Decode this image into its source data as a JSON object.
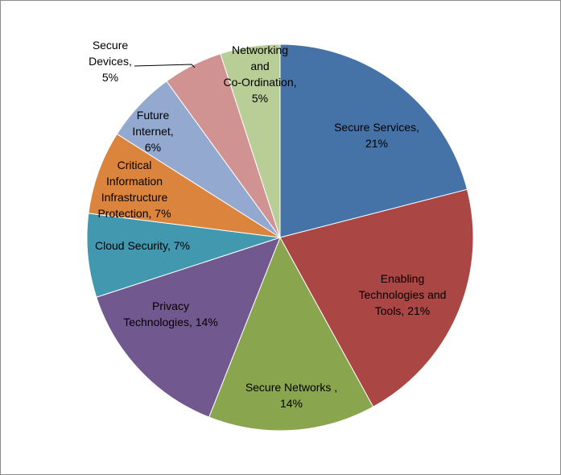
{
  "chart_data": {
    "type": "pie",
    "title": "",
    "start_angle_deg": 0,
    "direction": "clockwise",
    "legend": "none",
    "slices": [
      {
        "label": [
          "Secure Services,",
          "21%"
        ],
        "value": 21,
        "color": "#4572A7"
      },
      {
        "label": [
          "Enabling",
          "Technologies and",
          "Tools, 21%"
        ],
        "value": 21,
        "color": "#AA4643"
      },
      {
        "label": [
          "Secure Networks ,",
          "14%"
        ],
        "value": 14,
        "color": "#89A54E"
      },
      {
        "label": [
          "Privacy",
          "Technologies, 14%"
        ],
        "value": 14,
        "color": "#71588F"
      },
      {
        "label": [
          "Cloud Security, 7%"
        ],
        "value": 7,
        "color": "#4198AF"
      },
      {
        "label": [
          "Critical",
          "Information",
          "Infrastructure",
          "Protection, 7%"
        ],
        "value": 7,
        "color": "#DB843D"
      },
      {
        "label": [
          "Future",
          "Internet,",
          "6%"
        ],
        "value": 6,
        "color": "#93A9CF"
      },
      {
        "label": [
          "Secure",
          "Devices,",
          "5%"
        ],
        "value": 5,
        "color": "#D19392"
      },
      {
        "label": [
          "Networking",
          "and",
          "Co-Ordination,",
          "5%"
        ],
        "value": 5,
        "color": "#B9CD96"
      }
    ]
  }
}
